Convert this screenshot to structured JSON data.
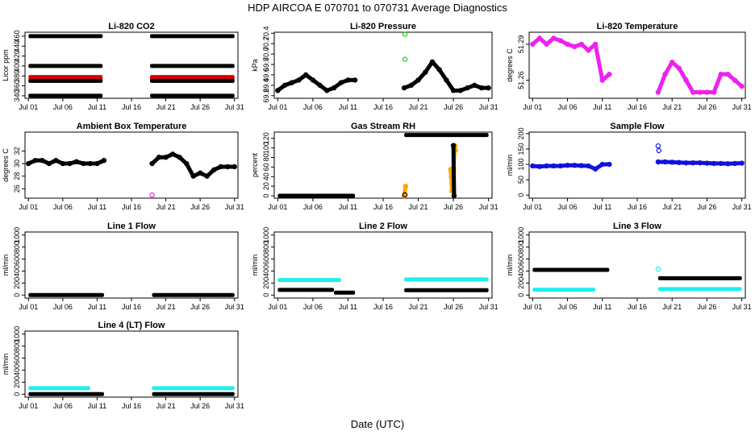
{
  "figure": {
    "title": "HDP    AIRCOA E    070701 to 070731    Average Diagnostics",
    "xlabel": "Date (UTC)"
  },
  "colors": {
    "black": "#000000",
    "red": "#e00000",
    "green": "#22cc22",
    "magenta": "#ee22ee",
    "blue": "#1111dd",
    "orange": "#ffa500",
    "cyan": "#22eeee"
  },
  "x_ticks": [
    "Jul 01",
    "Jul 06",
    "Jul 11",
    "Jul 16",
    "Jul 21",
    "Jul 26",
    "Jul 31"
  ],
  "chart_data": [
    {
      "type": "scatter",
      "title": "Li-820 CO2",
      "ylabel": "Licor ppm",
      "xlim": [
        0.5,
        31.5
      ],
      "ylim": [
        335,
        468
      ],
      "yticks": [
        "340",
        "360",
        "380",
        "400",
        "420",
        "440",
        "460"
      ],
      "data_gap_days": [
        11.8,
        18.7
      ],
      "series": [
        {
          "name": "ref high",
          "color": "black",
          "y": 460,
          "x_start": 1,
          "x_end": 31
        },
        {
          "name": "ref mid",
          "color": "black",
          "y": 400,
          "x_start": 1,
          "x_end": 31
        },
        {
          "name": "sample",
          "color": "red",
          "y": 377,
          "x_start": 1,
          "x_end": 31
        },
        {
          "name": "ref low",
          "color": "black",
          "y": 370,
          "x_start": 1,
          "x_end": 31
        },
        {
          "name": "ref zero",
          "color": "black",
          "y": 340,
          "x_start": 1,
          "x_end": 31
        }
      ]
    },
    {
      "type": "scatter",
      "title": "Li-820 Pressure",
      "ylabel": "kPa",
      "xlim": [
        0.5,
        31.5
      ],
      "ylim": [
        69.15,
        70.42
      ],
      "yticks": [
        "69.2",
        "69.4",
        "69.6",
        "69.8",
        "70.0",
        "70.2",
        "70.4"
      ],
      "data_gap_days": [
        12.2,
        19.2
      ],
      "series": [
        {
          "name": "pressure",
          "color": "black",
          "x": [
            1,
            2,
            3,
            4,
            5,
            6,
            7,
            8,
            9,
            10,
            11,
            12,
            19,
            20,
            21,
            22,
            23,
            24,
            25,
            26,
            27,
            28,
            29,
            30,
            31
          ],
          "y": [
            69.3,
            69.4,
            69.45,
            69.5,
            69.6,
            69.5,
            69.4,
            69.3,
            69.35,
            69.45,
            69.5,
            69.5,
            69.35,
            69.4,
            69.5,
            69.65,
            69.85,
            69.7,
            69.5,
            69.3,
            69.3,
            69.35,
            69.4,
            69.35,
            69.35
          ]
        },
        {
          "name": "outliers",
          "color": "green",
          "x": [
            19.1,
            19.1
          ],
          "y": [
            70.38,
            69.9
          ]
        }
      ]
    },
    {
      "type": "scatter",
      "title": "Li-820 Temperature",
      "ylabel": "degrees C",
      "xlim": [
        0.5,
        31.5
      ],
      "ylim": [
        51.245,
        51.3
      ],
      "yticks": [
        "51.26",
        "51.29"
      ],
      "data_gap_days": [
        12.2,
        19.0
      ],
      "series": [
        {
          "name": "temperature",
          "color": "magenta",
          "x": [
            1,
            2,
            3,
            4,
            5,
            6,
            7,
            8,
            9,
            10,
            11,
            12,
            19,
            20,
            21,
            22,
            23,
            24,
            25,
            26,
            27,
            28,
            29,
            30,
            31
          ],
          "y": [
            51.29,
            51.295,
            51.29,
            51.295,
            51.293,
            51.29,
            51.288,
            51.29,
            51.285,
            51.29,
            51.26,
            51.265,
            51.25,
            51.265,
            51.275,
            51.27,
            51.26,
            51.25,
            51.25,
            51.25,
            51.25,
            51.265,
            51.265,
            51.26,
            51.255
          ]
        }
      ]
    },
    {
      "type": "scatter",
      "title": "Ambient Box Temperature",
      "ylabel": "degrees C",
      "xlim": [
        0.5,
        31.5
      ],
      "ylim": [
        24.5,
        35
      ],
      "yticks": [
        "26",
        "28",
        "30",
        "32"
      ],
      "data_gap_days": [
        12.2,
        19.0
      ],
      "series": [
        {
          "name": "ambient",
          "color": "black",
          "x": [
            1,
            2,
            3,
            4,
            5,
            6,
            7,
            8,
            9,
            10,
            11,
            12,
            19,
            20,
            21,
            22,
            23,
            24,
            25,
            26,
            27,
            28,
            29,
            30,
            31
          ],
          "y": [
            30,
            30.5,
            30.5,
            30,
            30.5,
            30,
            30,
            30.3,
            30,
            30,
            30,
            30.5,
            30,
            31,
            31,
            31.5,
            31,
            30,
            28,
            28.5,
            28,
            29,
            29.5,
            29.5,
            29.5
          ]
        },
        {
          "name": "ambient min",
          "color": "magenta",
          "x": [
            19
          ],
          "y": [
            25
          ]
        }
      ]
    },
    {
      "type": "scatter",
      "title": "Gas Stream RH",
      "ylabel": "percent",
      "xlim": [
        0.5,
        31.5
      ],
      "ylim": [
        -5,
        133
      ],
      "yticks": [
        "0",
        "20",
        "40",
        "60",
        "80",
        "100",
        "120"
      ],
      "series": [
        {
          "name": "dry stream",
          "color": "black",
          "x_start": 1,
          "x_end": 12,
          "y": 0
        },
        {
          "name": "saturated",
          "color": "black",
          "x_start": 19,
          "x_end": 31,
          "y": 127
        },
        {
          "name": "spikes",
          "color": "orange",
          "x": [
            19,
            19.2,
            25.6,
            25.7,
            25.8,
            26.2,
            26.3
          ],
          "y": [
            0,
            20,
            55,
            40,
            10,
            105,
            95
          ]
        },
        {
          "name": "spikes black",
          "color": "black",
          "x": [
            19.1,
            26,
            26.1
          ],
          "y": [
            2,
            105,
            0
          ]
        }
      ]
    },
    {
      "type": "scatter",
      "title": "Sample Flow",
      "ylabel": "ml/min",
      "xlim": [
        0.5,
        31.5
      ],
      "ylim": [
        -10,
        205
      ],
      "yticks": [
        "0",
        "50",
        "100",
        "150",
        "200"
      ],
      "data_gap_days": [
        12.2,
        19.0
      ],
      "series": [
        {
          "name": "sample flow",
          "color": "blue",
          "x": [
            1,
            2,
            3,
            4,
            5,
            6,
            7,
            8,
            9,
            10,
            11,
            12,
            19,
            20,
            21,
            22,
            23,
            24,
            25,
            26,
            27,
            28,
            29,
            30,
            31
          ],
          "y": [
            95,
            93,
            95,
            95,
            95,
            97,
            97,
            96,
            95,
            85,
            100,
            100,
            108,
            108,
            107,
            106,
            105,
            105,
            105,
            104,
            103,
            103,
            102,
            103,
            104
          ]
        },
        {
          "name": "outliers",
          "color": "blue",
          "x": [
            19,
            19.1
          ],
          "y": [
            160,
            145
          ]
        }
      ]
    },
    {
      "type": "scatter",
      "title": "Line 1 Flow",
      "ylabel": "ml/min",
      "xlim": [
        0.5,
        31.5
      ],
      "ylim": [
        -50,
        1050
      ],
      "yticks": [
        "0",
        "200",
        "400",
        "600",
        "800",
        "1000"
      ],
      "series": [
        {
          "name": "line 1",
          "color": "black",
          "x_start": 1,
          "x_end": 12,
          "y": 0
        },
        {
          "name": "line 1b",
          "color": "black",
          "x_start": 19,
          "x_end": 31,
          "y": 0
        }
      ]
    },
    {
      "type": "scatter",
      "title": "Line 2 Flow",
      "ylabel": "ml/min",
      "xlim": [
        0.5,
        31.5
      ],
      "ylim": [
        -50,
        1050
      ],
      "yticks": [
        "0",
        "200",
        "400",
        "600",
        "800",
        "1000"
      ],
      "series": [
        {
          "name": "line 2 cyan",
          "color": "cyan",
          "x_start": 1,
          "x_end": 10,
          "y": 250
        },
        {
          "name": "line 2 cyan b",
          "color": "cyan",
          "x_start": 19,
          "x_end": 31,
          "y": 260
        },
        {
          "name": "line 2 black",
          "color": "black",
          "x_start": 1,
          "x_end": 9,
          "y": 85
        },
        {
          "name": "line 2 black b",
          "color": "black",
          "x_start": 9,
          "x_end": 12,
          "y": 40
        },
        {
          "name": "line 2 black c",
          "color": "black",
          "x_start": 19,
          "x_end": 31,
          "y": 80
        }
      ]
    },
    {
      "type": "scatter",
      "title": "Line 3 Flow",
      "ylabel": "ml/min",
      "xlim": [
        0.5,
        31.5
      ],
      "ylim": [
        -50,
        1050
      ],
      "yticks": [
        "0",
        "200",
        "400",
        "600",
        "800",
        "1000"
      ],
      "series": [
        {
          "name": "line 3 black",
          "color": "black",
          "x_start": 1,
          "x_end": 12,
          "y": 420
        },
        {
          "name": "line 3 black b",
          "color": "black",
          "x_start": 19,
          "x_end": 31,
          "y": 280
        },
        {
          "name": "line 3 cyan",
          "color": "cyan",
          "x_start": 1,
          "x_end": 10,
          "y": 90
        },
        {
          "name": "line 3 cyan b",
          "color": "cyan",
          "x_start": 19,
          "x_end": 31,
          "y": 100
        },
        {
          "name": "line 3 outlier",
          "color": "cyan",
          "x": [
            19
          ],
          "y": [
            430
          ]
        }
      ]
    },
    {
      "type": "scatter",
      "title": "Line 4 (LT) Flow",
      "ylabel": "ml/min",
      "xlim": [
        0.5,
        31.5
      ],
      "ylim": [
        -50,
        1050
      ],
      "yticks": [
        "0",
        "200",
        "400",
        "600",
        "800",
        "1000"
      ],
      "series": [
        {
          "name": "line 4 cyan",
          "color": "cyan",
          "x_start": 1,
          "x_end": 10,
          "y": 100
        },
        {
          "name": "line 4 cyan b",
          "color": "cyan",
          "x_start": 19,
          "x_end": 31,
          "y": 100
        },
        {
          "name": "line 4 black",
          "color": "black",
          "x_start": 1,
          "x_end": 12,
          "y": 0
        },
        {
          "name": "line 4 black b",
          "color": "black",
          "x_start": 19,
          "x_end": 31,
          "y": 0
        }
      ]
    }
  ]
}
